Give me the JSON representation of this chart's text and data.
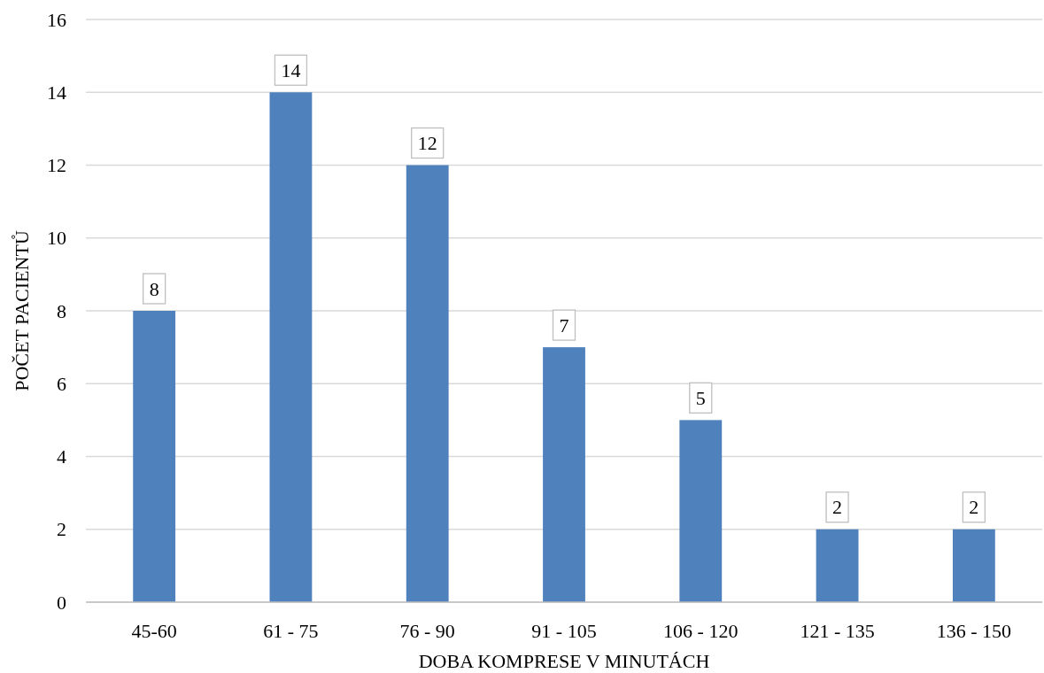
{
  "chart_data": {
    "type": "bar",
    "xlabel": "DOBA KOMPRESE V MINUTÁCH",
    "ylabel": "POČET PACIENTŮ",
    "categories": [
      "45-60",
      "61 - 75",
      "76 - 90",
      "91 - 105",
      "106 - 120",
      "121 - 135",
      "136 - 150"
    ],
    "values": [
      8,
      14,
      12,
      7,
      5,
      2,
      2
    ],
    "color": "#4f81bd",
    "ylim": [
      0,
      16
    ],
    "yticks": [
      0,
      2,
      4,
      6,
      8,
      10,
      12,
      14,
      16
    ],
    "grid": "y",
    "data_labels": true
  }
}
